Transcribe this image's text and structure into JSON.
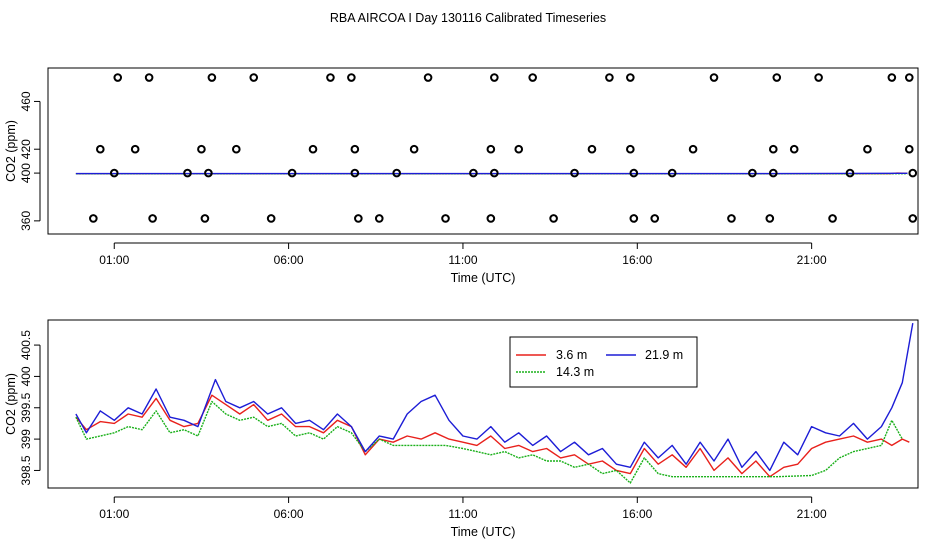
{
  "title": "RBA AIRCOA I  Day 130116  Calibrated Timeseries",
  "colors": {
    "red": "#e8211c",
    "green": "#1ab01a",
    "blue": "#1d1dd6",
    "black": "#000000"
  },
  "chart_data": [
    {
      "type": "scatter",
      "name": "top-panel",
      "xlabel": "Time (UTC)",
      "ylabel": "CO2 (ppm)",
      "xlim": [
        -0.9,
        24.05
      ],
      "ylim": [
        349,
        488
      ],
      "x_ticks": [
        1,
        6,
        11,
        16,
        21
      ],
      "x_tick_labels": [
        "01:00",
        "06:00",
        "11:00",
        "16:00",
        "21:00"
      ],
      "y_ticks": [
        360,
        400,
        420,
        460
      ],
      "y_tick_labels": [
        "360",
        "400",
        "420",
        "460"
      ],
      "series": [
        {
          "name": "3.6 m",
          "color": "red",
          "type": "line",
          "x": [
            -0.1,
            5.0,
            10.0,
            15.0,
            20.0,
            23.25,
            23.45,
            23.75
          ],
          "y": [
            399.5,
            399.5,
            399.5,
            399.5,
            399.5,
            399.5,
            400.0,
            399.8
          ]
        },
        {
          "name": "14.3 m",
          "color": "green",
          "type": "line",
          "x": [
            -0.1,
            5.0,
            10.0,
            15.0,
            20.0,
            23.75
          ],
          "y": [
            399.4,
            399.4,
            399.4,
            399.4,
            399.4,
            399.5
          ]
        },
        {
          "name": "21.9 m",
          "color": "blue",
          "type": "line",
          "x": [
            -0.1,
            5.0,
            10.0,
            15.0,
            20.0,
            23.75
          ],
          "y": [
            399.6,
            399.6,
            399.6,
            399.6,
            399.6,
            399.8
          ]
        }
      ],
      "points": {
        "x": [
          1.1,
          2.0,
          3.8,
          5.0,
          7.2,
          7.8,
          10.0,
          11.9,
          13.0,
          15.2,
          15.8,
          18.2,
          20.0,
          21.2,
          23.3,
          23.8,
          0.6,
          1.6,
          3.5,
          4.5,
          6.7,
          7.9,
          9.6,
          11.8,
          12.6,
          14.7,
          15.8,
          17.6,
          19.9,
          20.5,
          22.6,
          23.8,
          1.0,
          3.1,
          3.7,
          6.1,
          7.9,
          9.1,
          11.3,
          11.9,
          14.2,
          15.9,
          17.0,
          19.3,
          19.9,
          22.1,
          23.9,
          0.4,
          2.1,
          3.6,
          5.5,
          8.0,
          8.6,
          10.5,
          11.8,
          13.6,
          15.9,
          16.5,
          18.7,
          19.8,
          21.6,
          23.9
        ],
        "y": [
          480,
          480,
          480,
          480,
          480,
          480,
          480,
          480,
          480,
          480,
          480,
          480,
          480,
          480,
          480,
          480,
          420,
          420,
          420,
          420,
          420,
          420,
          420,
          420,
          420,
          420,
          420,
          420,
          420,
          420,
          420,
          420,
          400,
          400,
          400,
          400,
          400,
          400,
          400,
          400,
          400,
          400,
          400,
          400,
          400,
          400,
          400,
          362,
          362,
          362,
          362,
          362,
          362,
          362,
          362,
          362,
          362,
          362,
          362,
          362,
          362,
          362
        ]
      }
    },
    {
      "type": "line",
      "name": "bottom-panel",
      "xlabel": "Time (UTC)",
      "ylabel": "CO2 (ppm)",
      "xlim": [
        -0.9,
        24.05
      ],
      "ylim": [
        398.22,
        400.9
      ],
      "x_ticks": [
        1,
        6,
        11,
        16,
        21
      ],
      "x_tick_labels": [
        "01:00",
        "06:00",
        "11:00",
        "16:00",
        "21:00"
      ],
      "y_ticks": [
        398.5,
        399.0,
        399.5,
        400.0,
        400.5
      ],
      "y_tick_labels": [
        "398.5",
        "399",
        "399.5",
        "400",
        "400.5"
      ],
      "legend": {
        "position": "top-right-center",
        "entries": [
          {
            "label": "3.6 m",
            "color": "red"
          },
          {
            "label": "21.9 m",
            "color": "blue"
          },
          {
            "label": "14.3 m",
            "color": "green"
          }
        ]
      },
      "series": [
        {
          "name": "3.6 m",
          "color": "red",
          "x": [
            -0.1,
            0.2,
            0.6,
            1.0,
            1.4,
            1.8,
            2.2,
            2.6,
            3.0,
            3.4,
            3.8,
            4.2,
            4.6,
            5.0,
            5.4,
            5.8,
            6.2,
            6.6,
            7.0,
            7.4,
            7.8,
            8.2,
            8.6,
            9.0,
            9.4,
            9.8,
            10.2,
            10.6,
            11.0,
            11.4,
            11.8,
            12.2,
            12.6,
            13.0,
            13.4,
            13.8,
            14.2,
            14.6,
            15.0,
            15.4,
            15.8,
            16.2,
            16.6,
            17.0,
            17.4,
            17.8,
            18.2,
            18.6,
            19.0,
            19.4,
            19.8,
            20.2,
            20.6,
            21.0,
            21.4,
            21.8,
            22.2,
            22.6,
            23.0,
            23.3,
            23.6,
            23.8
          ],
          "y": [
            399.35,
            399.15,
            399.28,
            399.25,
            399.4,
            399.35,
            399.65,
            399.3,
            399.2,
            399.25,
            399.7,
            399.55,
            399.4,
            399.55,
            399.3,
            399.4,
            399.2,
            399.2,
            399.1,
            399.3,
            399.2,
            398.75,
            399.0,
            398.95,
            399.05,
            399.0,
            399.1,
            399.0,
            398.95,
            398.9,
            399.05,
            398.85,
            398.9,
            398.8,
            398.85,
            398.7,
            398.75,
            398.6,
            398.65,
            398.5,
            398.45,
            398.85,
            398.6,
            398.75,
            398.55,
            398.85,
            398.5,
            398.7,
            398.45,
            398.65,
            398.4,
            398.55,
            398.6,
            398.85,
            398.95,
            399.0,
            399.05,
            398.95,
            399.0,
            398.9,
            399.0,
            398.95
          ]
        },
        {
          "name": "14.3 m",
          "color": "green",
          "x": [
            -0.1,
            0.2,
            0.6,
            1.0,
            1.4,
            1.8,
            2.2,
            2.6,
            3.0,
            3.4,
            3.8,
            4.2,
            4.6,
            5.0,
            5.4,
            5.8,
            6.2,
            6.6,
            7.0,
            7.4,
            7.8,
            8.2,
            8.6,
            9.0,
            9.5,
            10.0,
            10.5,
            11.0,
            11.4,
            11.8,
            12.2,
            12.6,
            13.0,
            13.4,
            13.8,
            14.2,
            14.6,
            15.0,
            15.4,
            15.8,
            16.2,
            16.6,
            17.0,
            18.0,
            19.0,
            20.0,
            21.0,
            21.4,
            21.8,
            22.2,
            22.6,
            23.0,
            23.3,
            23.6
          ],
          "y": [
            399.35,
            399.0,
            399.05,
            399.1,
            399.2,
            399.15,
            399.45,
            399.1,
            399.15,
            399.05,
            399.6,
            399.4,
            399.3,
            399.35,
            399.2,
            399.25,
            399.05,
            399.1,
            399.0,
            399.2,
            399.1,
            398.8,
            399.0,
            398.9,
            398.9,
            398.9,
            398.9,
            398.85,
            398.8,
            398.75,
            398.8,
            398.7,
            398.75,
            398.65,
            398.65,
            398.55,
            398.6,
            398.45,
            398.5,
            398.3,
            398.7,
            398.45,
            398.4,
            398.4,
            398.4,
            398.4,
            398.42,
            398.5,
            398.7,
            398.8,
            398.85,
            398.9,
            399.3,
            399.0
          ]
        },
        {
          "name": "21.9 m",
          "color": "blue",
          "x": [
            -0.1,
            0.2,
            0.6,
            1.0,
            1.4,
            1.8,
            2.2,
            2.6,
            3.0,
            3.4,
            3.9,
            4.2,
            4.6,
            5.0,
            5.4,
            5.8,
            6.2,
            6.6,
            7.0,
            7.4,
            7.8,
            8.2,
            8.6,
            9.0,
            9.4,
            9.8,
            10.2,
            10.6,
            11.0,
            11.4,
            11.8,
            12.2,
            12.6,
            13.0,
            13.4,
            13.8,
            14.2,
            14.6,
            15.0,
            15.4,
            15.8,
            16.2,
            16.6,
            17.0,
            17.4,
            17.8,
            18.2,
            18.6,
            19.0,
            19.4,
            19.8,
            20.2,
            20.6,
            21.0,
            21.4,
            21.8,
            22.2,
            22.6,
            23.0,
            23.3,
            23.6,
            23.9
          ],
          "y": [
            399.4,
            399.1,
            399.45,
            399.3,
            399.5,
            399.4,
            399.8,
            399.35,
            399.3,
            399.2,
            399.95,
            399.6,
            399.5,
            399.6,
            399.4,
            399.5,
            399.25,
            399.3,
            399.15,
            399.4,
            399.2,
            398.8,
            399.05,
            399.0,
            399.4,
            399.6,
            399.7,
            399.3,
            399.05,
            399.0,
            399.2,
            398.95,
            399.1,
            398.9,
            399.05,
            398.8,
            398.95,
            398.75,
            398.85,
            398.6,
            398.55,
            398.95,
            398.7,
            398.9,
            398.6,
            398.95,
            398.65,
            399.0,
            398.55,
            398.8,
            398.5,
            398.95,
            398.75,
            399.2,
            399.1,
            399.05,
            399.25,
            399.0,
            399.2,
            399.5,
            399.9,
            400.85
          ]
        }
      ]
    }
  ]
}
